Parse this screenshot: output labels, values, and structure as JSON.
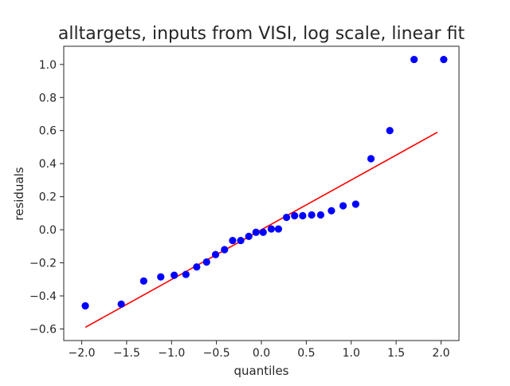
{
  "chart_data": {
    "type": "scatter",
    "title": "alltargets, inputs from VISI, log scale, linear fit",
    "xlabel": "quantiles",
    "ylabel": "residuals",
    "xlim": [
      -2.2,
      2.2
    ],
    "ylim": [
      -0.67,
      1.11
    ],
    "x_ticks": [
      -2.0,
      -1.5,
      -1.0,
      -0.5,
      0.0,
      0.5,
      1.0,
      1.5,
      2.0
    ],
    "x_tick_labels": [
      "−2.0",
      "−1.5",
      "−1.0",
      "−0.5",
      "0.0",
      "0.5",
      "1.0",
      "1.5",
      "2.0"
    ],
    "y_ticks": [
      -0.6,
      -0.4,
      -0.2,
      0.0,
      0.2,
      0.4,
      0.6,
      0.8,
      1.0
    ],
    "y_tick_labels": [
      "−0.6",
      "−0.4",
      "−0.2",
      "0.0",
      "0.2",
      "0.4",
      "0.6",
      "0.8",
      "1.0"
    ],
    "grid": false,
    "colors": {
      "points": "#0000ff",
      "fit": "#ff0000",
      "axes": "#262626"
    },
    "points": {
      "x": [
        -1.96,
        -1.56,
        -1.31,
        -1.12,
        -0.97,
        -0.84,
        -0.72,
        -0.61,
        -0.51,
        -0.41,
        -0.32,
        -0.23,
        -0.14,
        -0.06,
        0.02,
        0.11,
        0.19,
        0.28,
        0.37,
        0.46,
        0.56,
        0.66,
        0.78,
        0.91,
        1.05,
        1.22,
        1.43,
        1.7,
        2.03
      ],
      "y": [
        -0.46,
        -0.45,
        -0.31,
        -0.285,
        -0.275,
        -0.27,
        -0.225,
        -0.195,
        -0.15,
        -0.12,
        -0.065,
        -0.065,
        -0.04,
        -0.015,
        -0.015,
        0.005,
        0.005,
        0.075,
        0.085,
        0.085,
        0.09,
        0.09,
        0.115,
        0.145,
        0.155,
        0.43,
        0.6,
        1.03,
        1.03
      ]
    },
    "fit_line": {
      "x": [
        -1.96,
        1.96
      ],
      "y": [
        -0.59,
        0.59
      ]
    }
  }
}
